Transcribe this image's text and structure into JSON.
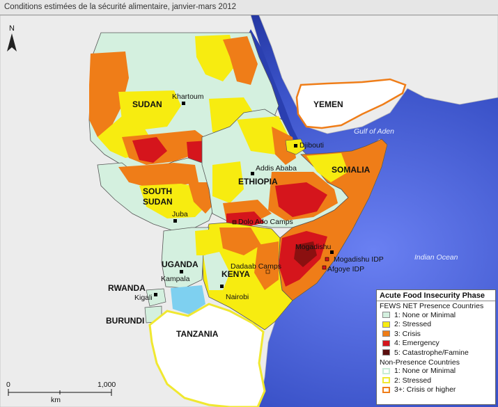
{
  "title": "Conditions estimées de la sécurité alimentaire, janvier-mars 2012",
  "colors": {
    "phase1": "#d4f0df",
    "phase2": "#f7ec10",
    "phase3": "#ef7d18",
    "phase4": "#d5151c",
    "phase5": "#5a0d0d",
    "np1": "#c8ecd6",
    "np2": "#f0e830",
    "np3": "#ef7d18",
    "land": "#ededed",
    "sea": "#3046b8",
    "lake": "#7ed0f0"
  },
  "countries": {
    "sudan": "SUDAN",
    "south_sudan": "SOUTH\nSUDAN",
    "ethiopia": "ETHIOPIA",
    "somalia": "SOMALIA",
    "kenya": "KENYA",
    "uganda": "UGANDA",
    "rwanda": "RWANDA",
    "burundi": "BURUNDI",
    "tanzania": "TANZANIA",
    "yemen": "YEMEN"
  },
  "cities": {
    "khartoum": "Khartoum",
    "addis": "Addis Ababa",
    "djibouti": "Djibouti",
    "juba": "Juba",
    "dolo": "Dolo Ado Camps",
    "mogadishu": "Mogadishu",
    "mogadishu_idp": "Mogadishu IDP",
    "afgoye": "Afgoye IDP",
    "dadaab": "Dadaab Camps",
    "kampala": "Kampala",
    "nairobi": "Nairobi",
    "kigali": "Kigali"
  },
  "water": {
    "gulf_aden": "Gulf of Aden",
    "indian_ocean": "Indian Ocean"
  },
  "north_arrow": "N",
  "scale": {
    "zero": "0",
    "max": "1,000",
    "unit": "km"
  },
  "legend": {
    "title": "Acute Food Insecurity Phase",
    "presence_heading": "FEWS NET Presence Countries",
    "presence_items": [
      {
        "label": "1: None or Minimal",
        "color": "#d4f0df"
      },
      {
        "label": "2: Stressed",
        "color": "#f7ec10"
      },
      {
        "label": "3: Crisis",
        "color": "#ef7d18"
      },
      {
        "label": "4: Emergency",
        "color": "#d5151c"
      },
      {
        "label": "5: Catastrophe/Famine",
        "color": "#5a0d0d"
      }
    ],
    "nonpresence_heading": "Non-Presence Countries",
    "nonpresence_items": [
      {
        "label": "1: None or Minimal",
        "color": "#c8ecd6"
      },
      {
        "label": "2: Stressed",
        "color": "#f0e830"
      },
      {
        "label": "3+: Crisis or higher",
        "color": "#ef7d18"
      }
    ]
  }
}
